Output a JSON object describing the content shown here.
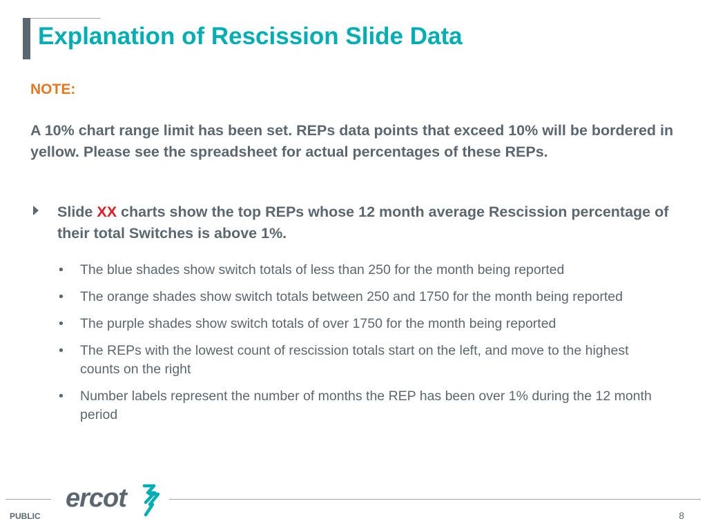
{
  "title": "Explanation of Rescission Slide Data",
  "note_label": "NOTE:",
  "paragraph": "A 10% chart range limit has been set. REPs data points that exceed 10% will be bordered in yellow. Please see the spreadsheet for actual percentages of these REPs.",
  "main_bullet": {
    "prefix": "Slide",
    "highlight": "XX",
    "suffix": "charts show the top REPs whose 12 month average Rescission percentage of their total Switches is above 1%."
  },
  "sub_bullets": [
    "The blue shades show switch totals of less than 250 for the month being reported",
    "The orange shades show switch totals between 250 and 1750 for the month being reported",
    "The purple shades show switch totals of over 1750 for the month being reported",
    "The REPs with the lowest count of rescission totals start on the left, and move to the highest counts on the right",
    "Number labels represent the number of months the REP has been over 1% during the 12 month period"
  ],
  "footer": {
    "classification": "PUBLIC",
    "logo_text": "ercot",
    "page_number": "8"
  },
  "colors": {
    "title": "#00aeb3",
    "note": "#e87722",
    "highlight": "#e31b23",
    "body_text": "#5b6770"
  }
}
